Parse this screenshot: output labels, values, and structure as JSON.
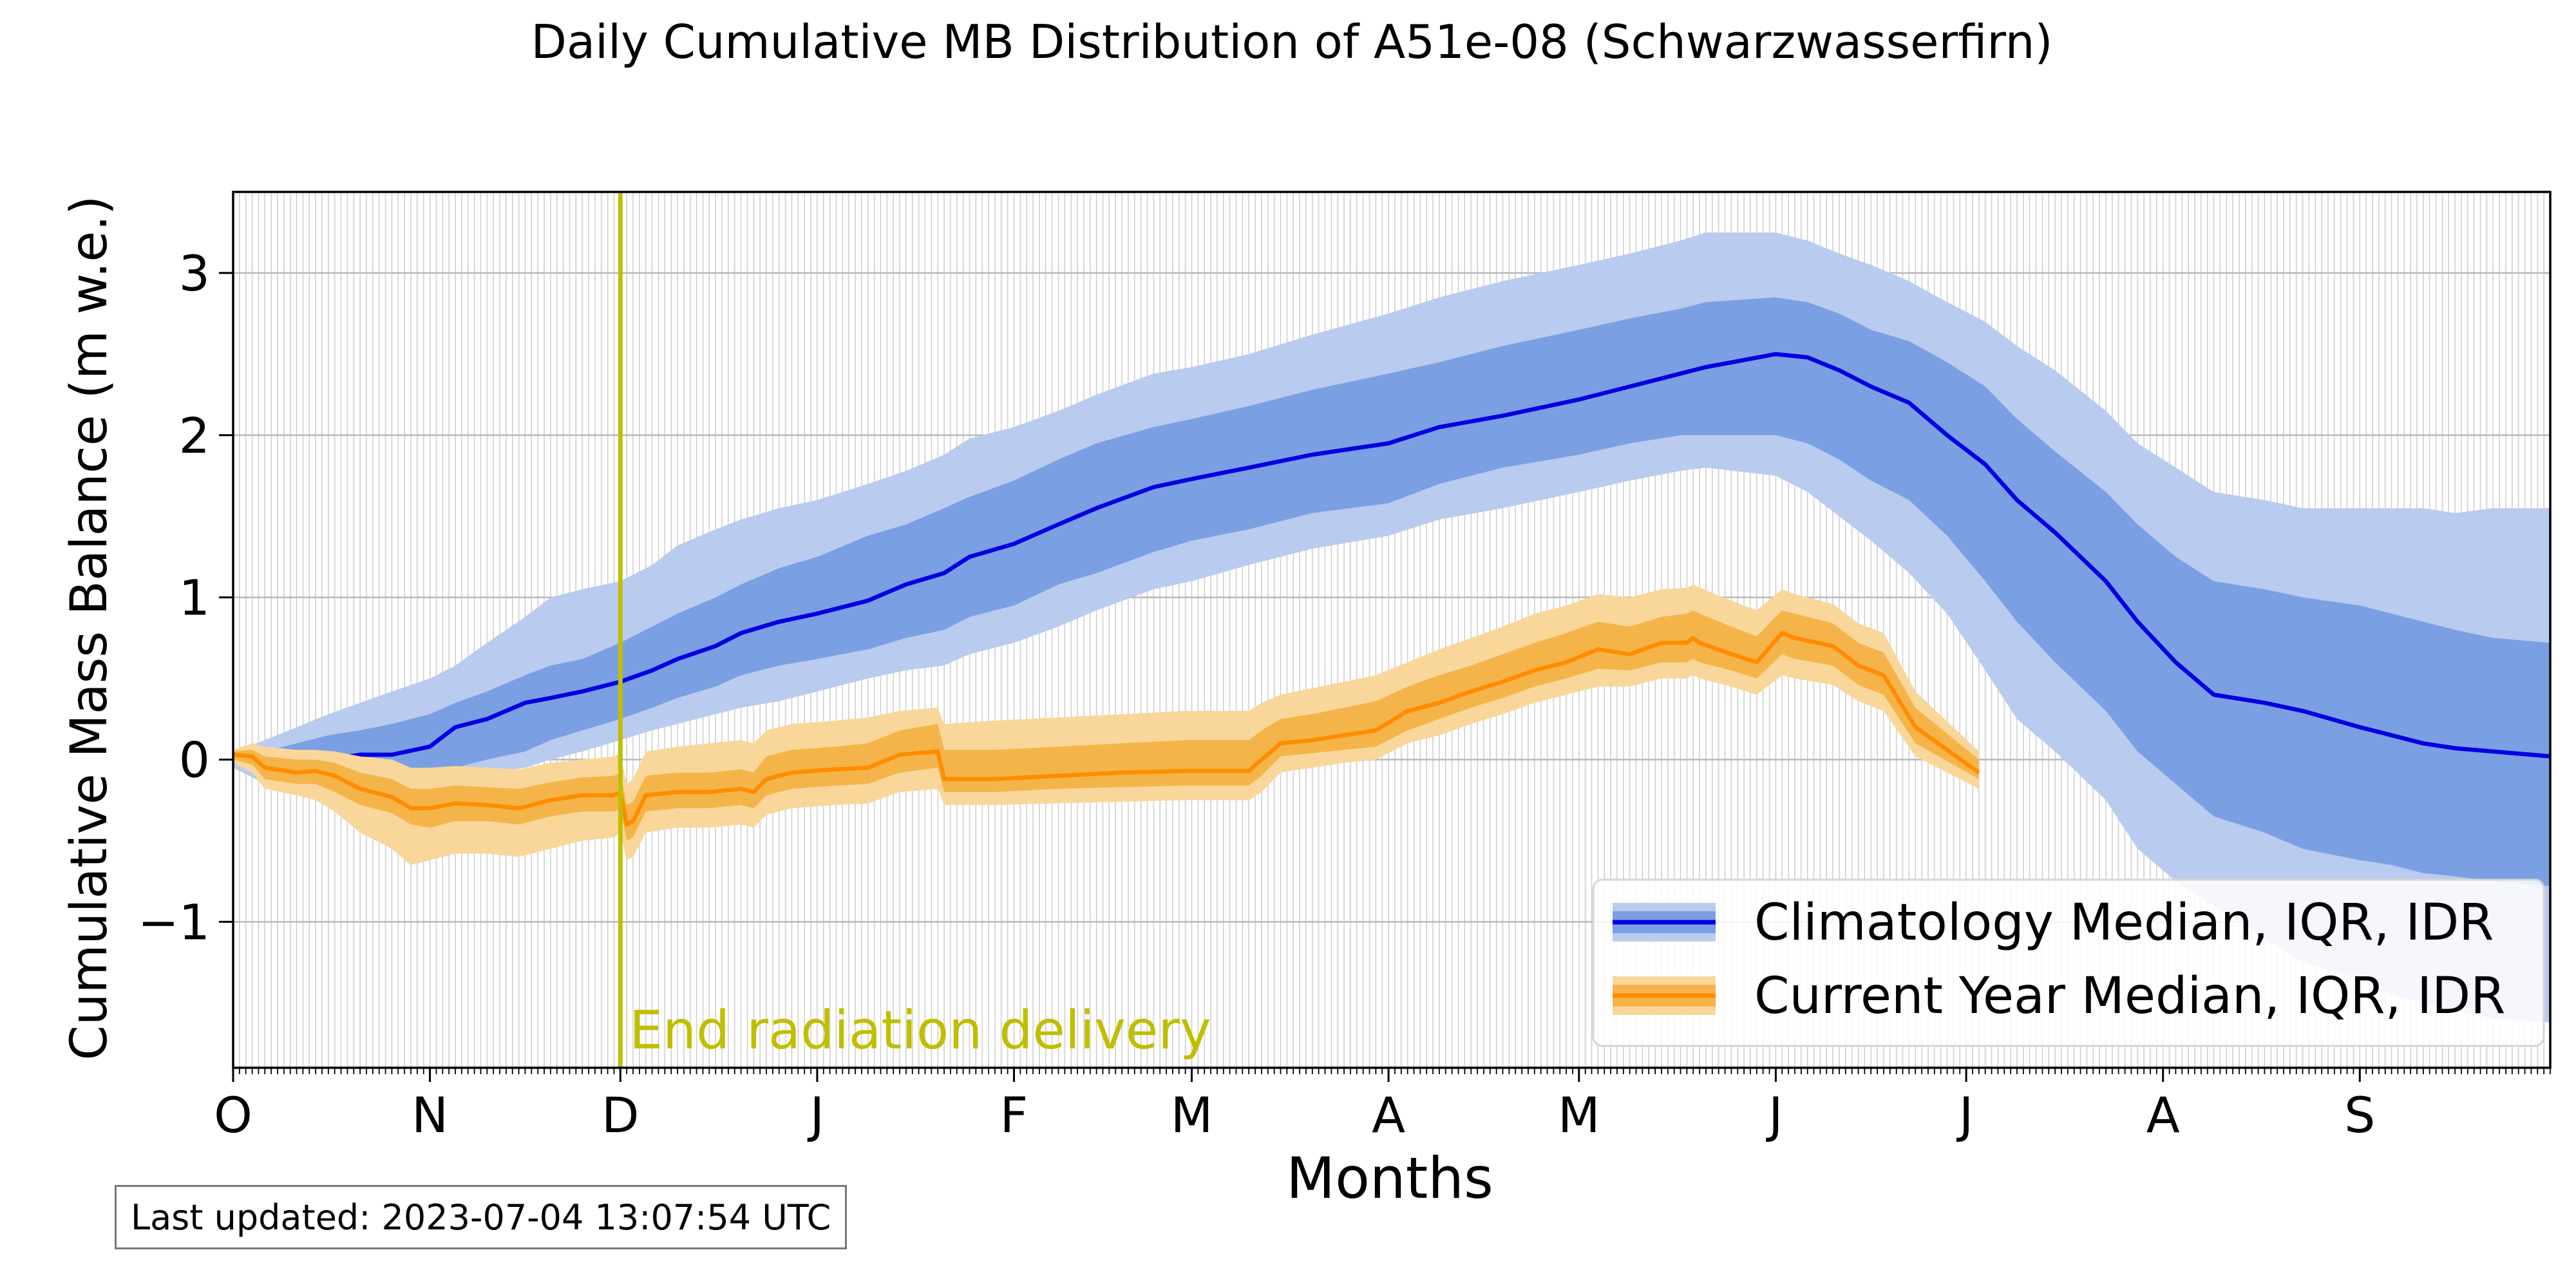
{
  "chart_data": {
    "type": "line",
    "title": "Daily Cumulative MB Distribution of A51e-08 (Schwarzwasserfirn)",
    "xlabel": "Months",
    "ylabel": "Cumulative Mass Balance (m w.e.)",
    "xlim": [
      0,
      365
    ],
    "ylim": [
      -1.9,
      3.5
    ],
    "grid": true,
    "legend_position": "lower right",
    "x_ticks": [
      {
        "day": 0,
        "label": "O"
      },
      {
        "day": 31,
        "label": "N"
      },
      {
        "day": 61,
        "label": "D"
      },
      {
        "day": 92,
        "label": "J"
      },
      {
        "day": 123,
        "label": "F"
      },
      {
        "day": 151,
        "label": "M"
      },
      {
        "day": 182,
        "label": "A"
      },
      {
        "day": 212,
        "label": "M"
      },
      {
        "day": 243,
        "label": "J"
      },
      {
        "day": 273,
        "label": "J"
      },
      {
        "day": 304,
        "label": "A"
      },
      {
        "day": 335,
        "label": "S"
      }
    ],
    "y_ticks": [
      {
        "value": -1,
        "label": "−1"
      },
      {
        "value": 0,
        "label": "0"
      },
      {
        "value": 1,
        "label": "1"
      },
      {
        "value": 2,
        "label": "2"
      },
      {
        "value": 3,
        "label": "3"
      }
    ],
    "vline": {
      "day": 61,
      "label": "End radiation delivery",
      "color": "#bfbf00"
    },
    "series": [
      {
        "name": "Climatology Median, IQR, IDR",
        "color": "#0000e0",
        "iqr_color": "#7b9fe3",
        "idr_color": "#b9cbee",
        "x": [
          0,
          5,
          10,
          15,
          20,
          25,
          31,
          35,
          40,
          46,
          50,
          55,
          61,
          66,
          70,
          76,
          80,
          86,
          92,
          100,
          106,
          112,
          116,
          123,
          130,
          136,
          145,
          151,
          160,
          170,
          182,
          190,
          200,
          212,
          220,
          228,
          232,
          243,
          248,
          253,
          258,
          264,
          270,
          276,
          281,
          287,
          295,
          300,
          306,
          312,
          320,
          326,
          335,
          340,
          345,
          350,
          356,
          365
        ],
        "median": [
          0.0,
          -0.03,
          0.0,
          0.0,
          0.03,
          0.03,
          0.08,
          0.2,
          0.25,
          0.35,
          0.38,
          0.42,
          0.48,
          0.55,
          0.62,
          0.7,
          0.78,
          0.85,
          0.9,
          0.98,
          1.08,
          1.15,
          1.25,
          1.33,
          1.45,
          1.55,
          1.68,
          1.73,
          1.8,
          1.88,
          1.95,
          2.05,
          2.12,
          2.22,
          2.3,
          2.38,
          2.42,
          2.5,
          2.48,
          2.4,
          2.3,
          2.2,
          2.0,
          1.82,
          1.6,
          1.4,
          1.1,
          0.85,
          0.6,
          0.4,
          0.35,
          0.3,
          0.2,
          0.15,
          0.1,
          0.07,
          0.05,
          0.02
        ],
        "iqr_low": [
          -0.02,
          -0.1,
          -0.15,
          -0.15,
          -0.14,
          -0.12,
          -0.1,
          -0.05,
          0.0,
          0.05,
          0.12,
          0.18,
          0.25,
          0.32,
          0.38,
          0.45,
          0.52,
          0.58,
          0.62,
          0.68,
          0.75,
          0.8,
          0.88,
          0.95,
          1.08,
          1.15,
          1.28,
          1.35,
          1.42,
          1.52,
          1.58,
          1.7,
          1.8,
          1.88,
          1.95,
          2.0,
          2.0,
          2.0,
          1.95,
          1.85,
          1.72,
          1.6,
          1.38,
          1.1,
          0.85,
          0.6,
          0.3,
          0.05,
          -0.15,
          -0.35,
          -0.45,
          -0.55,
          -0.62,
          -0.65,
          -0.7,
          -0.72,
          -0.75,
          -0.78
        ],
        "iqr_high": [
          0.02,
          0.05,
          0.1,
          0.15,
          0.18,
          0.22,
          0.28,
          0.35,
          0.42,
          0.52,
          0.58,
          0.62,
          0.72,
          0.82,
          0.9,
          1.0,
          1.08,
          1.18,
          1.25,
          1.38,
          1.45,
          1.55,
          1.62,
          1.72,
          1.85,
          1.95,
          2.05,
          2.1,
          2.18,
          2.28,
          2.38,
          2.45,
          2.55,
          2.65,
          2.72,
          2.78,
          2.82,
          2.85,
          2.82,
          2.75,
          2.65,
          2.58,
          2.45,
          2.3,
          2.1,
          1.9,
          1.65,
          1.45,
          1.25,
          1.1,
          1.05,
          1.0,
          0.95,
          0.9,
          0.85,
          0.8,
          0.75,
          0.72
        ],
        "idr_low": [
          -0.05,
          -0.15,
          -0.2,
          -0.22,
          -0.2,
          -0.18,
          -0.15,
          -0.12,
          -0.08,
          -0.05,
          0.0,
          0.05,
          0.12,
          0.18,
          0.22,
          0.28,
          0.32,
          0.36,
          0.42,
          0.5,
          0.55,
          0.58,
          0.65,
          0.72,
          0.82,
          0.92,
          1.05,
          1.1,
          1.2,
          1.3,
          1.38,
          1.48,
          1.55,
          1.65,
          1.72,
          1.78,
          1.8,
          1.75,
          1.65,
          1.5,
          1.35,
          1.15,
          0.9,
          0.55,
          0.25,
          0.05,
          -0.25,
          -0.55,
          -0.75,
          -0.9,
          -1.1,
          -1.25,
          -1.35,
          -1.45,
          -1.5,
          -1.55,
          -1.6,
          -1.62
        ],
        "idr_high": [
          0.05,
          0.12,
          0.2,
          0.28,
          0.35,
          0.42,
          0.5,
          0.58,
          0.72,
          0.88,
          1.0,
          1.05,
          1.1,
          1.2,
          1.32,
          1.42,
          1.48,
          1.55,
          1.6,
          1.7,
          1.78,
          1.88,
          1.98,
          2.05,
          2.15,
          2.25,
          2.38,
          2.42,
          2.5,
          2.62,
          2.75,
          2.85,
          2.95,
          3.05,
          3.12,
          3.2,
          3.25,
          3.25,
          3.2,
          3.12,
          3.05,
          2.95,
          2.82,
          2.7,
          2.55,
          2.4,
          2.15,
          1.95,
          1.8,
          1.65,
          1.6,
          1.55,
          1.55,
          1.55,
          1.55,
          1.52,
          1.55,
          1.55
        ]
      },
      {
        "name": "Current Year Median, IQR, IDR",
        "color": "#ff8c00",
        "iqr_color": "#f5b44a",
        "idr_color": "#f9d79a",
        "x": [
          0,
          3,
          5,
          10,
          13,
          16,
          20,
          25,
          28,
          31,
          35,
          40,
          45,
          50,
          55,
          60,
          61,
          62,
          63,
          65,
          70,
          75,
          80,
          82,
          84,
          88,
          95,
          100,
          105,
          111,
          112,
          120,
          130,
          140,
          150,
          160,
          162,
          165,
          170,
          175,
          180,
          185,
          190,
          195,
          200,
          205,
          210,
          215,
          220,
          225,
          229,
          230,
          231,
          236,
          240,
          244,
          246,
          252,
          256,
          260,
          265,
          275
        ],
        "median": [
          0.03,
          0.02,
          -0.05,
          -0.08,
          -0.07,
          -0.1,
          -0.18,
          -0.23,
          -0.3,
          -0.3,
          -0.27,
          -0.28,
          -0.3,
          -0.25,
          -0.22,
          -0.22,
          -0.2,
          -0.4,
          -0.38,
          -0.22,
          -0.2,
          -0.2,
          -0.18,
          -0.2,
          -0.12,
          -0.08,
          -0.06,
          -0.05,
          0.03,
          0.05,
          -0.12,
          -0.12,
          -0.1,
          -0.08,
          -0.07,
          -0.07,
          0.0,
          0.1,
          0.12,
          0.15,
          0.18,
          0.3,
          0.35,
          0.42,
          0.48,
          0.55,
          0.6,
          0.68,
          0.65,
          0.72,
          0.72,
          0.75,
          0.72,
          0.65,
          0.6,
          0.78,
          0.75,
          0.7,
          0.58,
          0.52,
          0.2,
          -0.08
        ],
        "iqr_low": [
          0.0,
          -0.03,
          -0.12,
          -0.15,
          -0.15,
          -0.2,
          -0.28,
          -0.33,
          -0.4,
          -0.42,
          -0.38,
          -0.38,
          -0.4,
          -0.35,
          -0.32,
          -0.32,
          -0.3,
          -0.5,
          -0.48,
          -0.32,
          -0.3,
          -0.3,
          -0.28,
          -0.3,
          -0.22,
          -0.18,
          -0.16,
          -0.15,
          -0.08,
          -0.05,
          -0.2,
          -0.2,
          -0.18,
          -0.17,
          -0.16,
          -0.16,
          -0.1,
          0.02,
          0.04,
          0.06,
          0.08,
          0.18,
          0.25,
          0.32,
          0.38,
          0.45,
          0.5,
          0.56,
          0.55,
          0.6,
          0.6,
          0.62,
          0.6,
          0.55,
          0.5,
          0.65,
          0.62,
          0.58,
          0.46,
          0.4,
          0.1,
          -0.12
        ],
        "iqr_high": [
          0.05,
          0.06,
          0.02,
          0.0,
          0.0,
          -0.02,
          -0.08,
          -0.12,
          -0.18,
          -0.18,
          -0.16,
          -0.17,
          -0.18,
          -0.14,
          -0.11,
          -0.1,
          -0.08,
          -0.28,
          -0.26,
          -0.1,
          -0.08,
          -0.08,
          -0.06,
          -0.08,
          0.02,
          0.06,
          0.08,
          0.1,
          0.18,
          0.22,
          0.06,
          0.06,
          0.08,
          0.1,
          0.12,
          0.12,
          0.18,
          0.25,
          0.28,
          0.32,
          0.36,
          0.45,
          0.52,
          0.58,
          0.65,
          0.72,
          0.78,
          0.85,
          0.82,
          0.88,
          0.9,
          0.92,
          0.9,
          0.82,
          0.76,
          0.92,
          0.9,
          0.84,
          0.72,
          0.66,
          0.32,
          0.0
        ],
        "idr_low": [
          -0.02,
          -0.08,
          -0.18,
          -0.22,
          -0.25,
          -0.32,
          -0.45,
          -0.55,
          -0.65,
          -0.62,
          -0.58,
          -0.58,
          -0.6,
          -0.55,
          -0.5,
          -0.48,
          -0.45,
          -0.62,
          -0.6,
          -0.45,
          -0.42,
          -0.42,
          -0.4,
          -0.42,
          -0.34,
          -0.3,
          -0.28,
          -0.27,
          -0.2,
          -0.18,
          -0.28,
          -0.28,
          -0.27,
          -0.26,
          -0.25,
          -0.25,
          -0.2,
          -0.08,
          -0.05,
          -0.02,
          0.0,
          0.1,
          0.15,
          0.22,
          0.28,
          0.35,
          0.4,
          0.45,
          0.45,
          0.5,
          0.5,
          0.52,
          0.5,
          0.45,
          0.4,
          0.52,
          0.5,
          0.46,
          0.36,
          0.3,
          0.02,
          -0.18
        ],
        "idr_high": [
          0.06,
          0.1,
          0.08,
          0.06,
          0.06,
          0.05,
          0.02,
          0.0,
          -0.05,
          -0.05,
          -0.04,
          -0.05,
          -0.06,
          -0.02,
          0.0,
          0.02,
          0.04,
          -0.15,
          -0.12,
          0.05,
          0.08,
          0.1,
          0.12,
          0.1,
          0.18,
          0.22,
          0.24,
          0.26,
          0.3,
          0.32,
          0.22,
          0.24,
          0.26,
          0.28,
          0.3,
          0.3,
          0.35,
          0.4,
          0.44,
          0.48,
          0.52,
          0.6,
          0.68,
          0.75,
          0.82,
          0.9,
          0.95,
          1.02,
          1.0,
          1.05,
          1.06,
          1.08,
          1.06,
          0.98,
          0.92,
          1.05,
          1.02,
          0.96,
          0.84,
          0.78,
          0.42,
          0.05
        ]
      }
    ]
  },
  "footer": {
    "last_updated": "Last updated: 2023-07-04 13:07:54 UTC"
  }
}
